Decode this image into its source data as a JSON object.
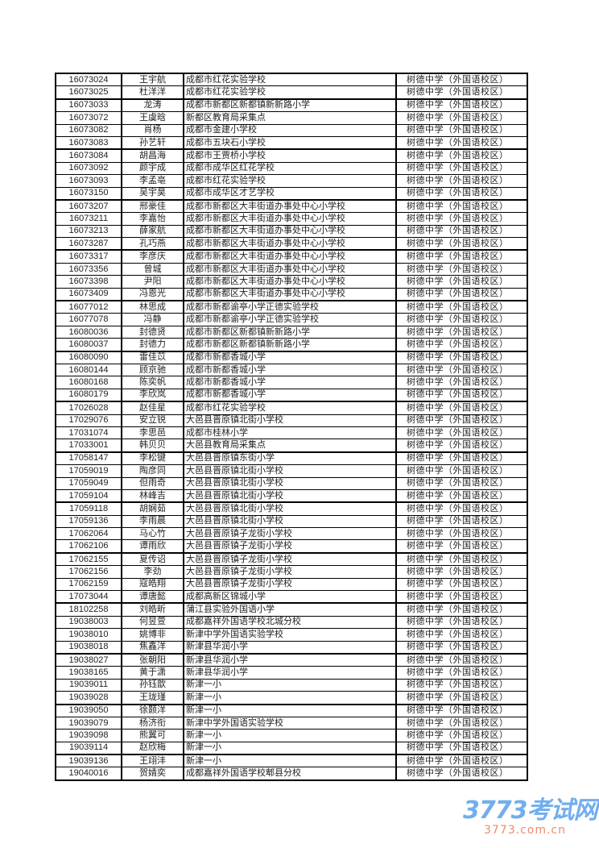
{
  "table": {
    "rows": [
      [
        "16073024",
        "王宇航",
        "成都市红花实验学校",
        "树德中学（外国语校区）"
      ],
      [
        "16073025",
        "杜洋洋",
        "成都市红花实验学校",
        "树德中学（外国语校区）"
      ],
      [
        "16073033",
        "龙涛",
        "成都市新都区新都镇新新路小学",
        "树德中学（外国语校区）"
      ],
      [
        "16073072",
        "王虞晗",
        "新都区教育局采集点",
        "树德中学（外国语校区）"
      ],
      [
        "16073082",
        "肖杨",
        "成都市金建小学校",
        "树德中学（外国语校区）"
      ],
      [
        "16073083",
        "孙艺轩",
        "成都市五块石小学校",
        "树德中学（外国语校区）"
      ],
      [
        "16073084",
        "胡昌海",
        "成都市王贾桥小学校",
        "树德中学（外国语校区）"
      ],
      [
        "16073092",
        "颜宇成",
        "成都市成华区红花学校",
        "树德中学（外国语校区）"
      ],
      [
        "16073093",
        "李孟亳",
        "成都市红花实验学校",
        "树德中学（外国语校区）"
      ],
      [
        "16073150",
        "吴宇昊",
        "成都市成华区才艺学校",
        "树德中学（外国语校区）"
      ],
      [
        "16073207",
        "邢豪佳",
        "成都市新都区大丰街道办事处中心小学校",
        "树德中学（外国语校区）"
      ],
      [
        "16073211",
        "李嘉怡",
        "成都市新都区大丰街道办事处中心小学校",
        "树德中学（外国语校区）"
      ],
      [
        "16073213",
        "薛家航",
        "成都市新都区大丰街道办事处中心小学校",
        "树德中学（外国语校区）"
      ],
      [
        "16073287",
        "孔巧燕",
        "成都市新都区大丰街道办事处中心小学校",
        "树德中学（外国语校区）"
      ],
      [
        "16073317",
        "李彦庆",
        "成都市新都区大丰街道办事处中心小学校",
        "树德中学（外国语校区）"
      ],
      [
        "16073356",
        "曾城",
        "成都市新都区大丰街道办事处中心小学校",
        "树德中学（外国语校区）"
      ],
      [
        "16073398",
        "尹阳",
        "成都市新都区大丰街道办事处中心小学校",
        "树德中学（外国语校区）"
      ],
      [
        "16073409",
        "冯恩光",
        "成都市新都区大丰街道办事处中心小学校",
        "树德中学（外国语校区）"
      ],
      [
        "16077012",
        "林思成",
        "成都市新都谕亭小学正德实验学校",
        "树德中学（外国语校区）"
      ],
      [
        "16077078",
        "冯静",
        "成都市新都谕亭小学正德实验学校",
        "树德中学（外国语校区）"
      ],
      [
        "16080036",
        "封德贤",
        "成都市新都区新都镇新新路小学",
        "树德中学（外国语校区）"
      ],
      [
        "16080037",
        "封德力",
        "成都市新都区新都镇新新路小学",
        "树德中学（外国语校区）"
      ],
      [
        "16080090",
        "雷佳苡",
        "成都市新都香城小学",
        "树德中学（外国语校区）"
      ],
      [
        "16080144",
        "顾京驰",
        "成都市新都香城小学",
        "树德中学（外国语校区）"
      ],
      [
        "16080168",
        "陈奕帆",
        "成都市新都香城小学",
        "树德中学（外国语校区）"
      ],
      [
        "16080179",
        "李欣岚",
        "成都市新都香城小学",
        "树德中学（外国语校区）"
      ],
      [
        "17026028",
        "赵佳星",
        "成都市红花实验学校",
        "树德中学（外国语校区）"
      ],
      [
        "17029076",
        "安立锐",
        "大邑县晋原镇北街小学校",
        "树德中学（外国语校区）"
      ],
      [
        "17031074",
        "李思邑",
        "成都市桂林小学",
        "树德中学（外国语校区）"
      ],
      [
        "17033001",
        "韩贝贝",
        "大邑县教育局采集点",
        "树德中学（外国语校区）"
      ],
      [
        "17058147",
        "李松键",
        "大邑县晋原镇东街小学",
        "树德中学（外国语校区）"
      ],
      [
        "17059019",
        "陶彦同",
        "大邑县晋原镇北街小学校",
        "树德中学（外国语校区）"
      ],
      [
        "17059049",
        "但雨奇",
        "大邑县晋原镇北街小学校",
        "树德中学（外国语校区）"
      ],
      [
        "17059104",
        "林峰吉",
        "大邑县晋原镇北街小学校",
        "树德中学（外国语校区）"
      ],
      [
        "17059118",
        "胡娴茹",
        "大邑县晋原镇北街小学校",
        "树德中学（外国语校区）"
      ],
      [
        "17059136",
        "李雨晨",
        "大邑县晋原镇北街小学校",
        "树德中学（外国语校区）"
      ],
      [
        "17062064",
        "马心竹",
        "大邑县晋原镇子龙街小学校",
        "树德中学（外国语校区）"
      ],
      [
        "17062106",
        "谭雨欣",
        "大邑县晋原镇子龙街小学校",
        "树德中学（外国语校区）"
      ],
      [
        "17062155",
        "夏传诏",
        "大邑县晋原镇子龙街小学校",
        "树德中学（外国语校区）"
      ],
      [
        "17062156",
        "李劲",
        "大邑县晋原镇子龙街小学校",
        "树德中学（外国语校区）"
      ],
      [
        "17062159",
        "寇皓翔",
        "大邑县晋原镇子龙街小学校",
        "树德中学（外国语校区）"
      ],
      [
        "17073044",
        "谭唐懿",
        "成都高新区锦城小学",
        "树德中学（外国语校区）"
      ],
      [
        "18102258",
        "刘皓昕",
        "蒲江县实验外国语小学",
        "树德中学（外国语校区）"
      ],
      [
        "19038003",
        "何昱萱",
        "成都嘉祥外国语学校北城分校",
        "树德中学（外国语校区）"
      ],
      [
        "19038010",
        "姚博非",
        "新津中学外国语实验学校",
        "树德中学（外国语校区）"
      ],
      [
        "19038018",
        "焦鑫洋",
        "新津县华润小学",
        "树德中学（外国语校区）"
      ],
      [
        "19038027",
        "张朝阳",
        "新津县华润小学",
        "树德中学（外国语校区）"
      ],
      [
        "19038165",
        "黄于潇",
        "新津县华润小学",
        "树德中学（外国语校区）"
      ],
      [
        "19039011",
        "孙钰歆",
        "新津一小",
        "树德中学（外国语校区）"
      ],
      [
        "19039028",
        "王珑瑾",
        "新津一小",
        "树德中学（外国语校区）"
      ],
      [
        "19039050",
        "徐颢洋",
        "新津一小",
        "树德中学（外国语校区）"
      ],
      [
        "19039079",
        "杨济衔",
        "新津中学外国语实验学校",
        "树德中学（外国语校区）"
      ],
      [
        "19039098",
        "熊翼可",
        "新津一小",
        "树德中学（外国语校区）"
      ],
      [
        "19039114",
        "赵欣梅",
        "新津一小",
        "树德中学（外国语校区）"
      ],
      [
        "19039136",
        "王翊沣",
        "新津一小",
        "树德中学（外国语校区）"
      ],
      [
        "19040016",
        "贺婧奕",
        "成都嘉祥外国语学校郫县分校",
        "树德中学（外国语校区）"
      ]
    ]
  },
  "watermark": {
    "logo_text": "3773考试网",
    "url": "3773.com.cn",
    "logo_color": "#5aa0ea",
    "url_color": "#f08a6a"
  }
}
